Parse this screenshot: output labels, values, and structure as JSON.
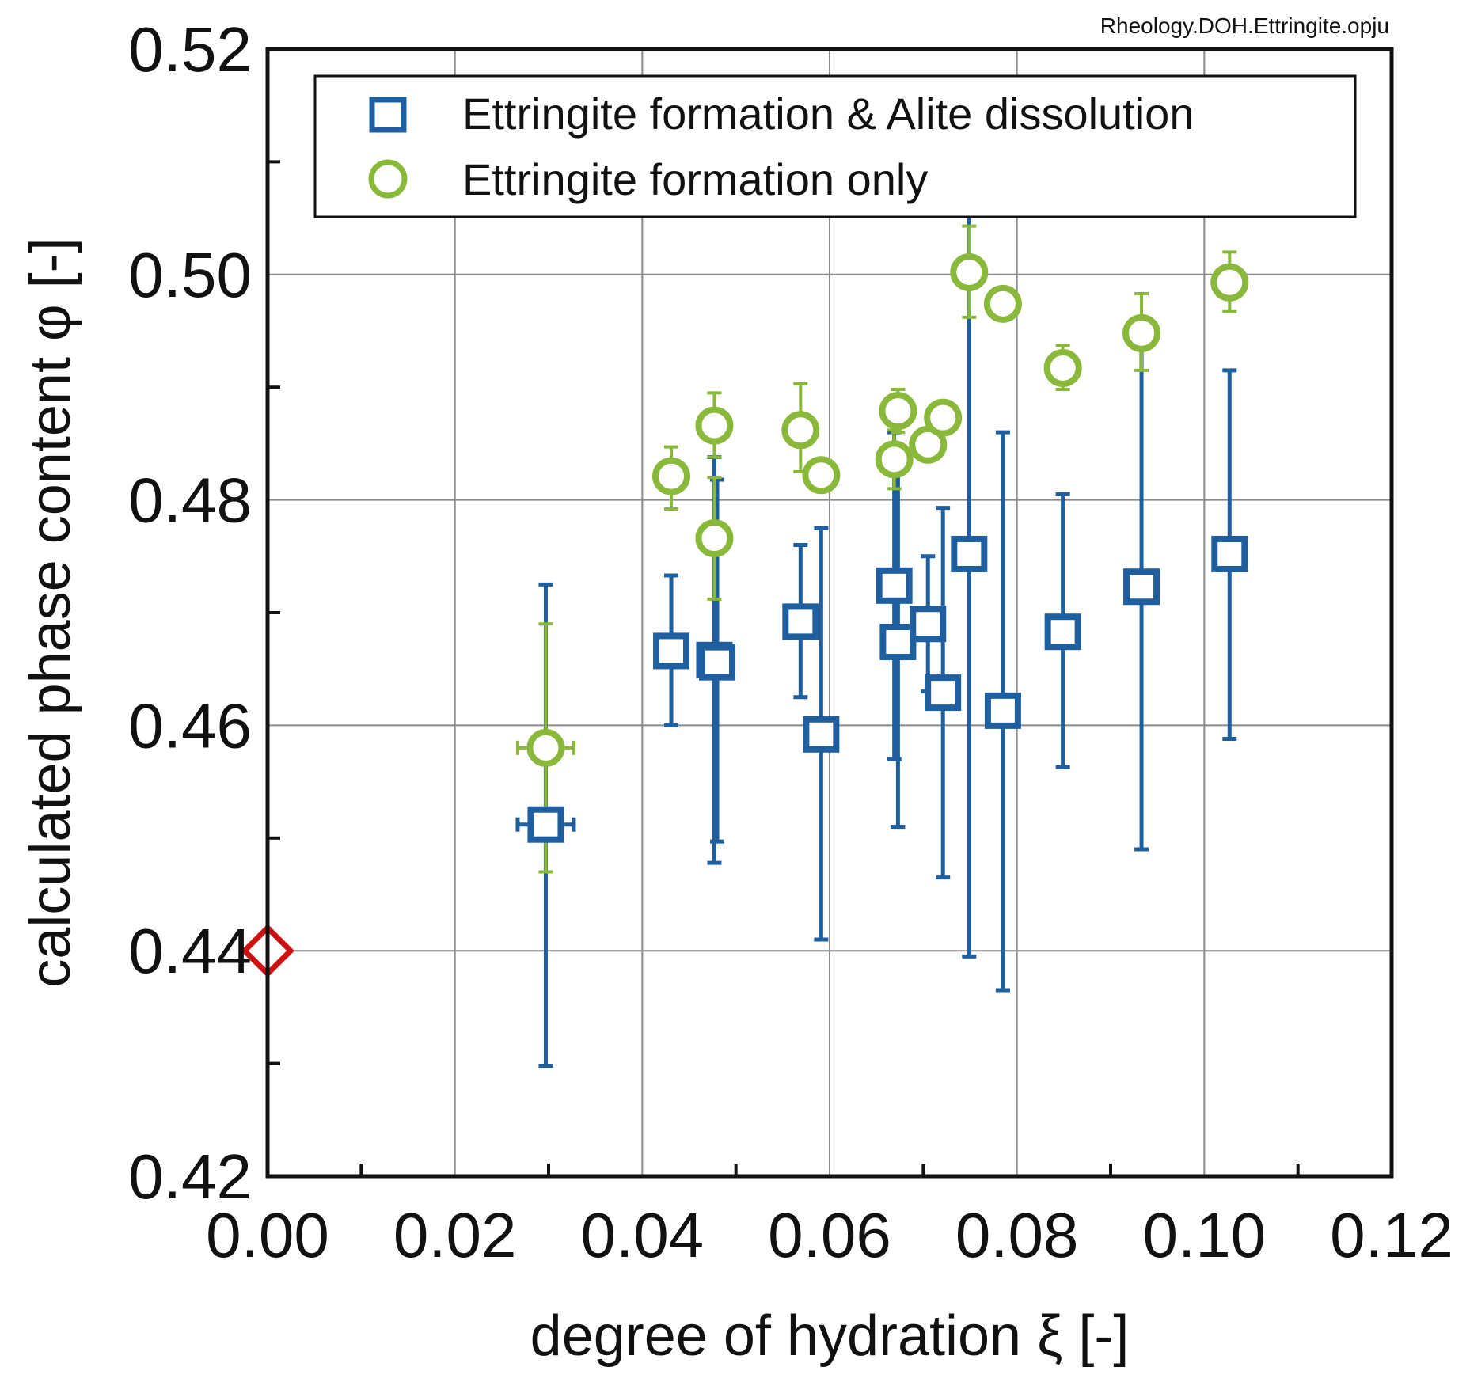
{
  "file_label": "Rheology.DOH.Ettringite.opju",
  "colors": {
    "blue": "#1f5f9f",
    "green": "#8ab83a",
    "red": "#cc1111",
    "grid": "#8a8a8a",
    "axis": "#111111"
  },
  "chart_data": {
    "type": "scatter",
    "title": "",
    "xlabel": "degree of hydration ξ [-]",
    "ylabel": "calculated phase content φ [-]",
    "xlim": [
      0.0,
      0.12
    ],
    "ylim": [
      0.42,
      0.52
    ],
    "x_ticks": [
      0.0,
      0.02,
      0.04,
      0.06,
      0.08,
      0.1,
      0.12
    ],
    "x_tick_labels": [
      "0.00",
      "0.02",
      "0.04",
      "0.06",
      "0.08",
      "0.10",
      "0.12"
    ],
    "y_ticks": [
      0.42,
      0.44,
      0.46,
      0.48,
      0.5,
      0.52
    ],
    "y_tick_labels": [
      "0.42",
      "0.44",
      "0.46",
      "0.48",
      "0.50",
      "0.52"
    ],
    "grid": true,
    "legend_position": "top",
    "series": [
      {
        "name": "Ettringite formation & Alite dissolution",
        "marker": "square",
        "color": "#1f5f9f",
        "points": [
          {
            "x": 0.0297,
            "y": 0.4512,
            "ylo": 0.4298,
            "yhi": 0.4725,
            "xerr": 0.003
          },
          {
            "x": 0.0431,
            "y": 0.4666,
            "ylo": 0.46,
            "yhi": 0.4733
          },
          {
            "x": 0.0477,
            "y": 0.4658,
            "ylo": 0.4478,
            "yhi": 0.4838
          },
          {
            "x": 0.048,
            "y": 0.4656,
            "ylo": 0.4497,
            "yhi": 0.4818
          },
          {
            "x": 0.0569,
            "y": 0.4692,
            "ylo": 0.4625,
            "yhi": 0.476
          },
          {
            "x": 0.0591,
            "y": 0.4592,
            "ylo": 0.441,
            "yhi": 0.4775
          },
          {
            "x": 0.0669,
            "y": 0.4724,
            "ylo": 0.457,
            "yhi": 0.486
          },
          {
            "x": 0.0673,
            "y": 0.4674,
            "ylo": 0.451,
            "yhi": 0.484
          },
          {
            "x": 0.0705,
            "y": 0.469,
            "ylo": 0.463,
            "yhi": 0.475
          },
          {
            "x": 0.0721,
            "y": 0.4629,
            "ylo": 0.4465,
            "yhi": 0.4793
          },
          {
            "x": 0.0749,
            "y": 0.4752,
            "ylo": 0.4395,
            "yhi": 0.511
          },
          {
            "x": 0.0785,
            "y": 0.4613,
            "ylo": 0.4365,
            "yhi": 0.486
          },
          {
            "x": 0.0849,
            "y": 0.4683,
            "ylo": 0.4563,
            "yhi": 0.4805
          },
          {
            "x": 0.0933,
            "y": 0.4723,
            "ylo": 0.449,
            "yhi": 0.4955
          },
          {
            "x": 0.1027,
            "y": 0.4752,
            "ylo": 0.4588,
            "yhi": 0.4915
          }
        ]
      },
      {
        "name": "Ettringite formation only",
        "marker": "circle",
        "color": "#8ab83a",
        "points": [
          {
            "x": 0.0297,
            "y": 0.458,
            "ylo": 0.447,
            "yhi": 0.469,
            "xerr": 0.003
          },
          {
            "x": 0.0431,
            "y": 0.4821,
            "ylo": 0.4792,
            "yhi": 0.4847
          },
          {
            "x": 0.0477,
            "y": 0.4866,
            "ylo": 0.4838,
            "yhi": 0.4895
          },
          {
            "x": 0.0477,
            "y": 0.4766,
            "ylo": 0.4712,
            "yhi": 0.482
          },
          {
            "x": 0.0569,
            "y": 0.4862,
            "ylo": 0.4825,
            "yhi": 0.4903
          },
          {
            "x": 0.0591,
            "y": 0.4822,
            "ylo": 0.482,
            "yhi": 0.4825
          },
          {
            "x": 0.0669,
            "y": 0.4836,
            "ylo": 0.481,
            "yhi": 0.4862
          },
          {
            "x": 0.0673,
            "y": 0.4879,
            "ylo": 0.486,
            "yhi": 0.4898
          },
          {
            "x": 0.0705,
            "y": 0.4849,
            "ylo": 0.484,
            "yhi": 0.4858
          },
          {
            "x": 0.0721,
            "y": 0.4873,
            "ylo": 0.486,
            "yhi": 0.4886
          },
          {
            "x": 0.0749,
            "y": 0.5002,
            "ylo": 0.4962,
            "yhi": 0.5043
          },
          {
            "x": 0.0785,
            "y": 0.4974,
            "ylo": 0.4962,
            "yhi": 0.4985
          },
          {
            "x": 0.0849,
            "y": 0.4917,
            "ylo": 0.4898,
            "yhi": 0.4937
          },
          {
            "x": 0.0933,
            "y": 0.4948,
            "ylo": 0.4915,
            "yhi": 0.4983
          },
          {
            "x": 0.1027,
            "y": 0.4993,
            "ylo": 0.4967,
            "yhi": 0.502
          }
        ]
      },
      {
        "name": "",
        "marker": "diamond",
        "color": "#cc1111",
        "points": [
          {
            "x": 0.0,
            "y": 0.44
          }
        ]
      }
    ]
  }
}
